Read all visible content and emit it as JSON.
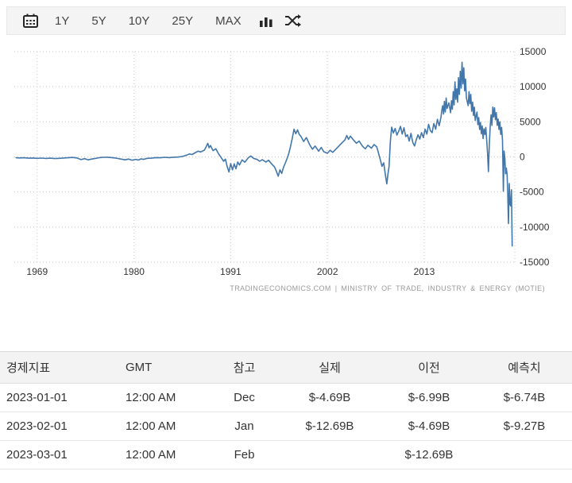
{
  "toolbar": {
    "ranges": [
      "1Y",
      "5Y",
      "10Y",
      "25Y",
      "MAX"
    ],
    "icons": [
      "calendar-icon",
      "bar-chart-icon",
      "shuffle-icon"
    ]
  },
  "chart_data": {
    "type": "line",
    "line_color": "#4277ab",
    "grid": true,
    "y_axis_position": "right",
    "x_ticks": [
      1969,
      1980,
      1991,
      2002,
      2013
    ],
    "y_ticks": [
      15000,
      10000,
      5000,
      0,
      -5000,
      -10000,
      -15000
    ],
    "xlim": [
      1966.4,
      2023.3
    ],
    "ylim": [
      -15000,
      15000
    ],
    "attribution": "TRADINGECONOMICS.COM  |  MINISTRY OF TRADE, INDUSTRY & ENERGY (MOTIE)",
    "points": [
      [
        1966.6,
        -120
      ],
      [
        1967,
        -150
      ],
      [
        1967.5,
        -130
      ],
      [
        1968,
        -180
      ],
      [
        1968.5,
        -160
      ],
      [
        1969,
        -200
      ],
      [
        1969.5,
        -170
      ],
      [
        1970,
        -220
      ],
      [
        1970.5,
        -180
      ],
      [
        1971,
        -240
      ],
      [
        1971.5,
        -200
      ],
      [
        1972,
        -160
      ],
      [
        1972.5,
        -120
      ],
      [
        1973,
        -80
      ],
      [
        1973.5,
        -150
      ],
      [
        1974,
        -380
      ],
      [
        1974.4,
        -250
      ],
      [
        1974.8,
        -420
      ],
      [
        1975.2,
        -300
      ],
      [
        1975.6,
        -220
      ],
      [
        1976,
        -120
      ],
      [
        1976.5,
        -60
      ],
      [
        1977,
        -40
      ],
      [
        1977.5,
        -100
      ],
      [
        1978,
        -180
      ],
      [
        1978.5,
        -300
      ],
      [
        1979,
        -420
      ],
      [
        1979.4,
        -300
      ],
      [
        1979.8,
        -480
      ],
      [
        1980.2,
        -350
      ],
      [
        1980.5,
        -450
      ],
      [
        1980.8,
        -280
      ],
      [
        1981.1,
        -350
      ],
      [
        1981.5,
        -200
      ],
      [
        1982,
        -180
      ],
      [
        1982.5,
        -100
      ],
      [
        1983,
        -120
      ],
      [
        1983.5,
        -60
      ],
      [
        1984,
        -100
      ],
      [
        1984.5,
        -40
      ],
      [
        1985,
        -20
      ],
      [
        1985.5,
        60
      ],
      [
        1986,
        250
      ],
      [
        1986.3,
        420
      ],
      [
        1986.6,
        340
      ],
      [
        1987,
        620
      ],
      [
        1987.3,
        820
      ],
      [
        1987.6,
        700
      ],
      [
        1988,
        960
      ],
      [
        1988.2,
        1420
      ],
      [
        1988.4,
        1950
      ],
      [
        1988.55,
        1300
      ],
      [
        1988.7,
        1620
      ],
      [
        1989,
        900
      ],
      [
        1989.3,
        1150
      ],
      [
        1989.6,
        480
      ],
      [
        1990,
        -250
      ],
      [
        1990.2,
        -620
      ],
      [
        1990.4,
        -320
      ],
      [
        1990.6,
        -1350
      ],
      [
        1990.8,
        -2150
      ],
      [
        1991,
        -950
      ],
      [
        1991.2,
        -1850
      ],
      [
        1991.4,
        -1000
      ],
      [
        1991.6,
        -1700
      ],
      [
        1991.8,
        -720
      ],
      [
        1992,
        -1150
      ],
      [
        1992.3,
        -420
      ],
      [
        1992.6,
        -760
      ],
      [
        1993,
        -120
      ],
      [
        1993.3,
        140
      ],
      [
        1993.6,
        -220
      ],
      [
        1994,
        -360
      ],
      [
        1994.3,
        -620
      ],
      [
        1994.6,
        -400
      ],
      [
        1995,
        -720
      ],
      [
        1995.3,
        -480
      ],
      [
        1995.6,
        -920
      ],
      [
        1996,
        -1450
      ],
      [
        1996.2,
        -2050
      ],
      [
        1996.4,
        -2750
      ],
      [
        1996.6,
        -1850
      ],
      [
        1996.8,
        -2350
      ],
      [
        1997,
        -1500
      ],
      [
        1997.2,
        -900
      ],
      [
        1997.4,
        -280
      ],
      [
        1997.6,
        450
      ],
      [
        1997.8,
        1500
      ],
      [
        1998,
        2650
      ],
      [
        1998.2,
        3950
      ],
      [
        1998.4,
        3300
      ],
      [
        1998.6,
        3850
      ],
      [
        1998.8,
        3200
      ],
      [
        1999,
        2900
      ],
      [
        1999.3,
        2200
      ],
      [
        1999.6,
        2750
      ],
      [
        2000,
        1700
      ],
      [
        2000.3,
        1100
      ],
      [
        2000.6,
        1550
      ],
      [
        2001,
        820
      ],
      [
        2001.3,
        1350
      ],
      [
        2001.6,
        720
      ],
      [
        2002,
        520
      ],
      [
        2002.3,
        950
      ],
      [
        2002.6,
        640
      ],
      [
        2003,
        1150
      ],
      [
        2003.3,
        1550
      ],
      [
        2003.6,
        1950
      ],
      [
        2004,
        2450
      ],
      [
        2004.2,
        3050
      ],
      [
        2004.4,
        2500
      ],
      [
        2004.6,
        2950
      ],
      [
        2005,
        2350
      ],
      [
        2005.3,
        1950
      ],
      [
        2005.6,
        2250
      ],
      [
        2006,
        1500
      ],
      [
        2006.3,
        1150
      ],
      [
        2006.6,
        1650
      ],
      [
        2007,
        1250
      ],
      [
        2007.3,
        1750
      ],
      [
        2007.6,
        1450
      ],
      [
        2008,
        -350
      ],
      [
        2008.2,
        -1350
      ],
      [
        2008.4,
        -850
      ],
      [
        2008.6,
        -2650
      ],
      [
        2008.75,
        -3850
      ],
      [
        2008.9,
        -2200
      ],
      [
        2009,
        -1400
      ],
      [
        2009.15,
        2100
      ],
      [
        2009.3,
        4250
      ],
      [
        2009.5,
        3400
      ],
      [
        2009.7,
        4050
      ],
      [
        2009.9,
        3100
      ],
      [
        2010.1,
        3650
      ],
      [
        2010.3,
        4350
      ],
      [
        2010.5,
        3250
      ],
      [
        2010.7,
        4150
      ],
      [
        2010.9,
        2900
      ],
      [
        2011.1,
        3150
      ],
      [
        2011.3,
        2250
      ],
      [
        2011.5,
        3350
      ],
      [
        2011.7,
        2050
      ],
      [
        2011.9,
        1550
      ],
      [
        2012.1,
        2450
      ],
      [
        2012.3,
        3150
      ],
      [
        2012.5,
        2550
      ],
      [
        2012.7,
        3450
      ],
      [
        2012.9,
        2750
      ],
      [
        2013.1,
        3950
      ],
      [
        2013.3,
        3250
      ],
      [
        2013.5,
        4650
      ],
      [
        2013.7,
        3750
      ],
      [
        2013.9,
        3450
      ],
      [
        2014.1,
        4750
      ],
      [
        2014.3,
        3950
      ],
      [
        2014.5,
        5350
      ],
      [
        2014.7,
        4450
      ],
      [
        2014.9,
        5600
      ],
      [
        2015,
        6600
      ],
      [
        2015.1,
        7300
      ],
      [
        2015.2,
        6100
      ],
      [
        2015.3,
        7900
      ],
      [
        2015.4,
        6400
      ],
      [
        2015.5,
        8400
      ],
      [
        2015.6,
        6900
      ],
      [
        2015.8,
        7700
      ],
      [
        2016,
        6300
      ],
      [
        2016.1,
        8000
      ],
      [
        2016.2,
        6800
      ],
      [
        2016.3,
        9300
      ],
      [
        2016.4,
        7400
      ],
      [
        2016.5,
        10700
      ],
      [
        2016.6,
        8200
      ],
      [
        2016.7,
        9700
      ],
      [
        2016.8,
        7800
      ],
      [
        2016.9,
        11300
      ],
      [
        2017,
        8900
      ],
      [
        2017.1,
        12200
      ],
      [
        2017.2,
        9800
      ],
      [
        2017.3,
        13500
      ],
      [
        2017.4,
        10400
      ],
      [
        2017.5,
        12700
      ],
      [
        2017.6,
        9400
      ],
      [
        2017.7,
        11100
      ],
      [
        2017.8,
        8400
      ],
      [
        2018,
        7300
      ],
      [
        2018.1,
        9300
      ],
      [
        2018.2,
        7600
      ],
      [
        2018.3,
        8900
      ],
      [
        2018.4,
        6500
      ],
      [
        2018.5,
        7800
      ],
      [
        2018.6,
        5900
      ],
      [
        2018.7,
        7100
      ],
      [
        2018.8,
        5200
      ],
      [
        2019,
        6400
      ],
      [
        2019.1,
        4600
      ],
      [
        2019.2,
        5600
      ],
      [
        2019.3,
        3900
      ],
      [
        2019.4,
        4900
      ],
      [
        2019.5,
        3300
      ],
      [
        2019.6,
        4400
      ],
      [
        2019.7,
        2600
      ],
      [
        2019.8,
        4000
      ],
      [
        2019.9,
        3200
      ],
      [
        2020,
        4200
      ],
      [
        2020.2,
        600
      ],
      [
        2020.3,
        -2100
      ],
      [
        2020.4,
        1700
      ],
      [
        2020.5,
        4300
      ],
      [
        2020.6,
        6000
      ],
      [
        2020.7,
        4500
      ],
      [
        2020.8,
        7100
      ],
      [
        2020.9,
        5700
      ],
      [
        2021,
        7000
      ],
      [
        2021.1,
        5300
      ],
      [
        2021.2,
        6300
      ],
      [
        2021.3,
        4500
      ],
      [
        2021.4,
        5400
      ],
      [
        2021.5,
        3900
      ],
      [
        2021.6,
        5000
      ],
      [
        2021.7,
        3200
      ],
      [
        2021.8,
        4200
      ],
      [
        2021.9,
        2400
      ],
      [
        2022,
        -4890
      ],
      [
        2022.08,
        840
      ],
      [
        2022.17,
        -210
      ],
      [
        2022.25,
        -2400
      ],
      [
        2022.33,
        -1600
      ],
      [
        2022.42,
        -2500
      ],
      [
        2022.5,
        -5100
      ],
      [
        2022.58,
        -9500
      ],
      [
        2022.67,
        -3800
      ],
      [
        2022.75,
        -6700
      ],
      [
        2022.83,
        -6990
      ],
      [
        2022.92,
        -4690
      ],
      [
        2023,
        -12690
      ]
    ]
  },
  "table": {
    "headers": [
      "경제지표",
      "GMT",
      "참고",
      "실제",
      "이전",
      "예측치"
    ],
    "rows": [
      [
        "2023-01-01",
        "12:00 AM",
        "Dec",
        "$-4.69B",
        "$-6.99B",
        "$-6.74B"
      ],
      [
        "2023-02-01",
        "12:00 AM",
        "Jan",
        "$-12.69B",
        "$-4.69B",
        "$-9.27B"
      ],
      [
        "2023-03-01",
        "12:00 AM",
        "Feb",
        "",
        "$-12.69B",
        ""
      ]
    ]
  }
}
